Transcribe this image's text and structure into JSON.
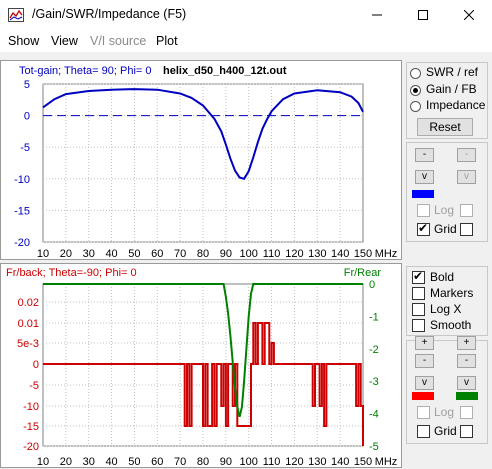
{
  "window": {
    "title": "/Gain/SWR/Impedance (F5)",
    "icons": {
      "app": "chart-icon",
      "minimize": "minimize-icon",
      "maximize": "maximize-icon",
      "close": "close-icon"
    }
  },
  "menu": [
    "Show",
    "View",
    "V/I source",
    "Plot"
  ],
  "plot_top": {
    "header": "Tot-gain; Theta= 90; Phi= 0",
    "filename": "helix_d50_h400_12t.out",
    "x_ticks": [
      "10",
      "20",
      "30",
      "40",
      "50",
      "60",
      "70",
      "80",
      "90",
      "100",
      "110",
      "120",
      "130",
      "140",
      "150"
    ],
    "x_unit": "MHz",
    "y_ticks": [
      "5",
      "0",
      "-5",
      "-10",
      "-15",
      "-20"
    ],
    "colors": {
      "header": "#0000c0",
      "curve": "#0000c0",
      "grid": "#c0c0c0"
    }
  },
  "plot_bottom": {
    "header_left": "Fr/back; Theta=-90; Phi= 0",
    "header_right": "Fr/Rear",
    "x_ticks": [
      "10",
      "20",
      "30",
      "40",
      "50",
      "60",
      "70",
      "80",
      "90",
      "100",
      "110",
      "120",
      "130",
      "140",
      "150"
    ],
    "x_unit": "MHz",
    "y_left_ticks": [
      "0.02",
      "0.01",
      "5e-3",
      "0",
      "-5",
      "-10",
      "-15",
      "-20"
    ],
    "y_right_ticks": [
      "0",
      "-1",
      "-2",
      "-3",
      "-4",
      "-5"
    ],
    "colors": {
      "left": "#cc0000",
      "right": "#008000",
      "grid": "#c0c0c0"
    }
  },
  "chart_data": [
    {
      "type": "line",
      "title": "Tot-gain; Theta= 90; Phi= 0",
      "subtitle": "helix_d50_h400_12t.out",
      "xlabel": "MHz",
      "xlim": [
        10,
        150
      ],
      "ylim": [
        -20,
        5
      ],
      "grid": true,
      "series": [
        {
          "name": "",
          "style": "solid",
          "color": "#0000c0",
          "x": [
            10,
            15,
            20,
            30,
            40,
            50,
            60,
            70,
            75,
            80,
            85,
            88,
            90,
            92,
            94,
            96,
            98,
            100,
            102,
            104,
            106,
            108,
            110,
            115,
            120,
            130,
            140,
            145,
            148,
            150
          ],
          "y": [
            1.3,
            2.6,
            3.4,
            3.9,
            4.1,
            4.2,
            4.1,
            3.5,
            2.8,
            1.6,
            -0.5,
            -2.5,
            -4.6,
            -6.8,
            -8.7,
            -9.8,
            -10.0,
            -8.8,
            -6.6,
            -4.2,
            -2.1,
            -0.6,
            0.7,
            2.6,
            3.5,
            4.0,
            3.7,
            3.0,
            2.0,
            0.6
          ]
        },
        {
          "name": "",
          "style": "dashed",
          "color": "#0000c0",
          "x": [
            10,
            150
          ],
          "y": [
            0,
            0
          ]
        }
      ]
    },
    {
      "type": "line",
      "title": "Fr/back; Theta=-90; Phi= 0",
      "xlabel": "MHz",
      "xlim": [
        10,
        150
      ],
      "ylim_left": [
        -20,
        0.02
      ],
      "ylim_right": [
        -5,
        0
      ],
      "grid": true,
      "series": [
        {
          "name": "",
          "axis": "left",
          "color": "#cc0000",
          "x": [
            10,
            72,
            72,
            73,
            73,
            74,
            74,
            75,
            75,
            76,
            76,
            80,
            80,
            81,
            81,
            82,
            82,
            84,
            84,
            85,
            85,
            86,
            86,
            88,
            88,
            89,
            89,
            90,
            90,
            91,
            91,
            93,
            93,
            94,
            94,
            95,
            95,
            96,
            96,
            97,
            97,
            101,
            101,
            102,
            102,
            103,
            103,
            104,
            104,
            106,
            106,
            107,
            107,
            109,
            109,
            110,
            110,
            111,
            111,
            128,
            128,
            129,
            129,
            131,
            131,
            132,
            132,
            133,
            133,
            134,
            134,
            147,
            147,
            148,
            148,
            149,
            149,
            150,
            150
          ],
          "y": [
            0,
            0,
            -15,
            -15,
            0,
            0,
            -15,
            -15,
            0,
            0,
            0,
            0,
            -15,
            -15,
            0,
            0,
            -15,
            -15,
            0,
            0,
            -15,
            -15,
            0,
            0,
            -10,
            -10,
            0,
            0,
            -15,
            -15,
            0,
            0,
            -10,
            -10,
            0,
            0,
            -15,
            -15,
            -15,
            -15,
            -15,
            -15,
            0,
            0,
            0.01,
            0.01,
            0,
            0,
            0.01,
            0.01,
            0,
            0,
            0.01,
            0.01,
            0,
            0,
            0.005,
            0.005,
            0,
            0,
            -10,
            -10,
            0,
            0,
            -10,
            -10,
            0,
            0,
            -15,
            -15,
            0,
            0,
            -10,
            -10,
            0,
            0,
            -10,
            -10,
            -20
          ]
        },
        {
          "name": "Fr/Rear",
          "axis": "right",
          "color": "#008000",
          "x": [
            10,
            89,
            90,
            91,
            92,
            93,
            94,
            95,
            96,
            97,
            98,
            99,
            100,
            101,
            102,
            150
          ],
          "y": [
            0,
            0,
            -0.4,
            -0.9,
            -1.6,
            -2.4,
            -3.2,
            -3.8,
            -4.1,
            -3.8,
            -3.0,
            -2.0,
            -1.0,
            -0.3,
            0,
            0
          ]
        }
      ]
    }
  ],
  "controls_top": {
    "radios": [
      {
        "label": "SWR / ref",
        "checked": false
      },
      {
        "label": "Gain / FB",
        "checked": true
      },
      {
        "label": "Impedance",
        "checked": false
      }
    ],
    "reset_label": "Reset",
    "spin": {
      "minus": "-",
      "down": "v"
    },
    "swatch_color": "#0000ff",
    "log_label": "Log",
    "grid_label": "Grid",
    "log_checked": false,
    "grid_checked": true,
    "log_enabled": false
  },
  "controls_bottom": {
    "checks": [
      {
        "label": "Bold",
        "checked": true
      },
      {
        "label": "Markers",
        "checked": false
      },
      {
        "label": "Log X",
        "checked": false
      },
      {
        "label": "Smooth",
        "checked": false
      }
    ],
    "spin": {
      "plus": "+",
      "minus": "-",
      "down": "v"
    },
    "swatch_left": "#ff0000",
    "swatch_right": "#008000",
    "log_label": "Log",
    "grid_label": "Grid",
    "log_checked": false,
    "grid_checked": false,
    "log_enabled": false
  }
}
